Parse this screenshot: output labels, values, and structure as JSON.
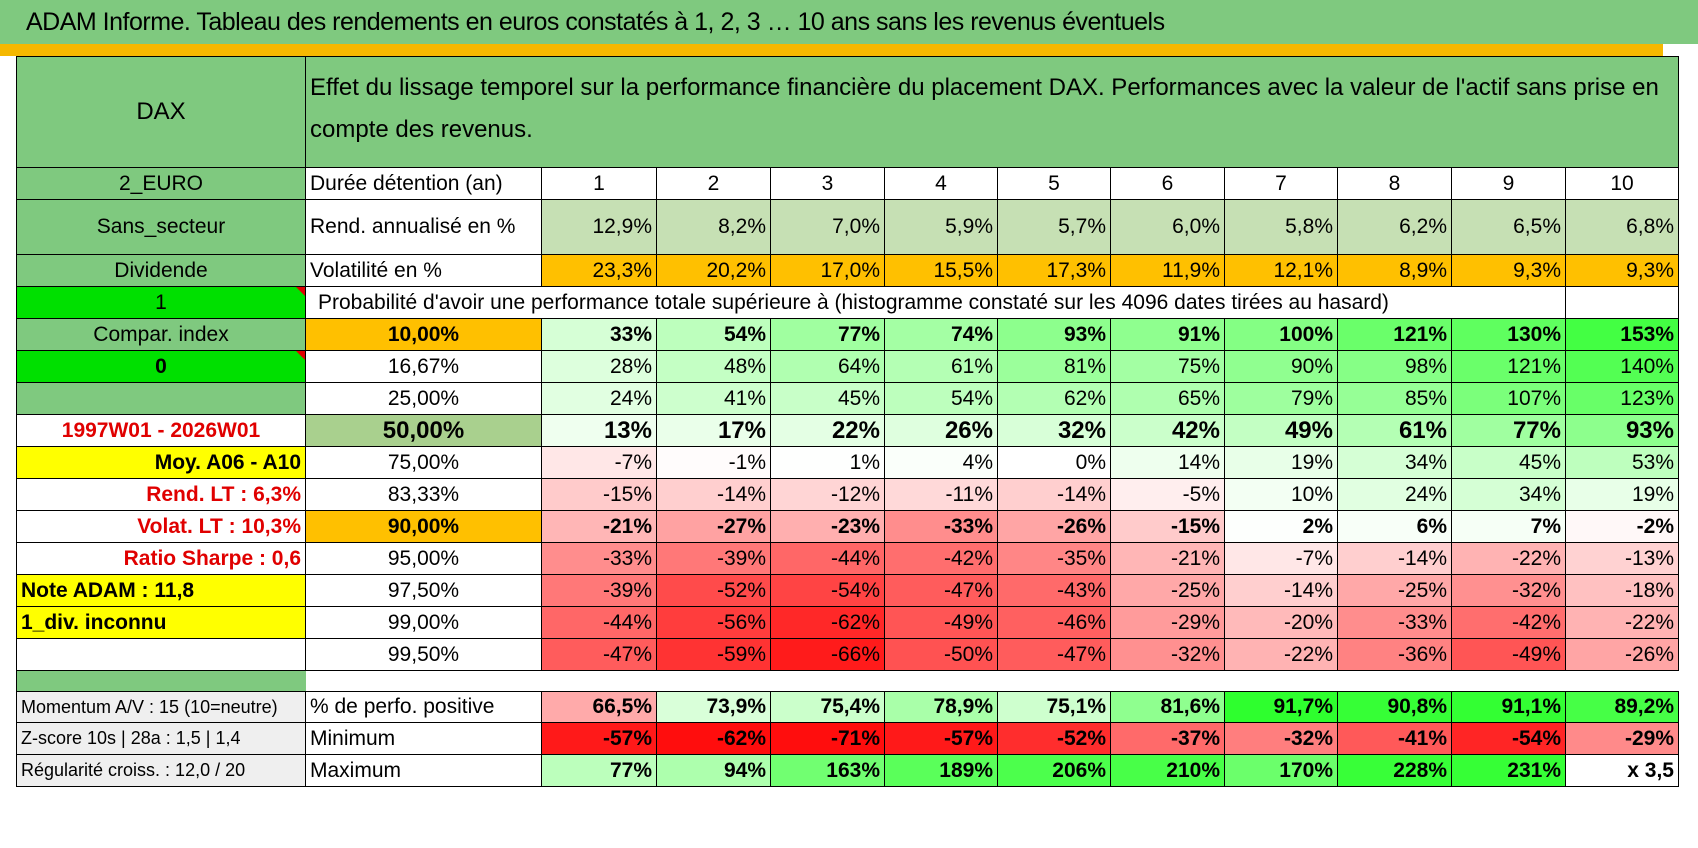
{
  "title": "ADAM Informe. Tableau des rendements en euros constatés à 1, 2, 3 … 10 ans sans les revenus éventuels",
  "header": {
    "asset": "DAX",
    "description": "Effet du lissage temporel sur la performance financière du placement DAX. Performances avec la valeur de l'actif sans prise en compte des revenus."
  },
  "years_row": {
    "side": "2_EURO",
    "label": "Durée détention (an)",
    "values": [
      "1",
      "2",
      "3",
      "4",
      "5",
      "6",
      "7",
      "8",
      "9",
      "10"
    ]
  },
  "rend_row": {
    "side": "Sans_secteur",
    "label": "Rend. annualisé en %",
    "values": [
      "12,9%",
      "8,2%",
      "7,0%",
      "5,9%",
      "5,7%",
      "6,0%",
      "5,8%",
      "6,2%",
      "6,5%",
      "6,8%"
    ]
  },
  "vol_row": {
    "side": "Dividende",
    "label": "Volatilité en %",
    "values": [
      "23,3%",
      "20,2%",
      "17,0%",
      "15,5%",
      "17,3%",
      "11,9%",
      "12,1%",
      "8,9%",
      "9,3%",
      "9,3%"
    ]
  },
  "prob_row": {
    "side": "1",
    "text": "Probabilité d'avoir une performance totale supérieure à (histogramme constaté sur les 4096 dates tirées au hasard)"
  },
  "quantiles": [
    {
      "side": "Compar. index",
      "pct": "10,00%",
      "values": [
        "33%",
        "54%",
        "77%",
        "74%",
        "93%",
        "91%",
        "100%",
        "121%",
        "130%",
        "153%"
      ]
    },
    {
      "side": "0",
      "pct": "16,67%",
      "values": [
        "28%",
        "48%",
        "64%",
        "61%",
        "81%",
        "75%",
        "90%",
        "98%",
        "121%",
        "140%"
      ]
    },
    {
      "side": "",
      "pct": "25,00%",
      "values": [
        "24%",
        "41%",
        "45%",
        "54%",
        "62%",
        "65%",
        "79%",
        "85%",
        "107%",
        "123%"
      ]
    },
    {
      "side": "1997W01 - 2026W01",
      "pct": "50,00%",
      "values": [
        "13%",
        "17%",
        "22%",
        "26%",
        "32%",
        "42%",
        "49%",
        "61%",
        "77%",
        "93%"
      ]
    },
    {
      "side": "Moy. A06 - A10",
      "pct": "75,00%",
      "values": [
        "-7%",
        "-1%",
        "1%",
        "4%",
        "0%",
        "14%",
        "19%",
        "34%",
        "45%",
        "53%"
      ]
    },
    {
      "side": "Rend. LT :    6,3%",
      "pct": "83,33%",
      "values": [
        "-15%",
        "-14%",
        "-12%",
        "-11%",
        "-14%",
        "-5%",
        "10%",
        "24%",
        "34%",
        "19%"
      ]
    },
    {
      "side": "Volat. LT :    10,3%",
      "pct": "90,00%",
      "values": [
        "-21%",
        "-27%",
        "-23%",
        "-33%",
        "-26%",
        "-15%",
        "2%",
        "6%",
        "7%",
        "-2%"
      ]
    },
    {
      "side": "Ratio Sharpe :     0,6",
      "pct": "95,00%",
      "values": [
        "-33%",
        "-39%",
        "-44%",
        "-42%",
        "-35%",
        "-21%",
        "-7%",
        "-14%",
        "-22%",
        "-13%"
      ]
    },
    {
      "side": "Note ADAM : 11,8",
      "pct": "97,50%",
      "values": [
        "-39%",
        "-52%",
        "-54%",
        "-47%",
        "-43%",
        "-25%",
        "-14%",
        "-25%",
        "-32%",
        "-18%"
      ]
    },
    {
      "side": "1_div. inconnu",
      "pct": "99,00%",
      "values": [
        "-44%",
        "-56%",
        "-62%",
        "-49%",
        "-46%",
        "-29%",
        "-20%",
        "-33%",
        "-42%",
        "-22%"
      ]
    },
    {
      "side": "",
      "pct": "99,50%",
      "values": [
        "-47%",
        "-59%",
        "-66%",
        "-50%",
        "-47%",
        "-32%",
        "-22%",
        "-36%",
        "-49%",
        "-26%"
      ]
    }
  ],
  "stats": [
    {
      "side": "Momentum A/V : 15 (10=neutre)",
      "label": "% de perfo. positive",
      "values": [
        "66,5%",
        "73,9%",
        "75,4%",
        "78,9%",
        "75,1%",
        "81,6%",
        "91,7%",
        "90,8%",
        "91,1%",
        "89,2%"
      ]
    },
    {
      "side": "Z-score 10s | 28a : 1,5 | 1,4",
      "label": "Minimum",
      "values": [
        "-57%",
        "-62%",
        "-71%",
        "-57%",
        "-52%",
        "-37%",
        "-32%",
        "-41%",
        "-54%",
        "-29%"
      ]
    },
    {
      "side": "Régularité croiss. : 12,0 / 20",
      "label": "Maximum",
      "values": [
        "77%",
        "94%",
        "163%",
        "189%",
        "206%",
        "210%",
        "170%",
        "228%",
        "231%",
        "x 3,5"
      ]
    }
  ],
  "colors": {
    "header_green": "#7fc97f",
    "lime": "#00e000",
    "yellow": "#ffff00",
    "orange": "#ffc000",
    "light_green": "#c6e0b4",
    "positive": "#00ff00",
    "negative": "#ff0000"
  }
}
